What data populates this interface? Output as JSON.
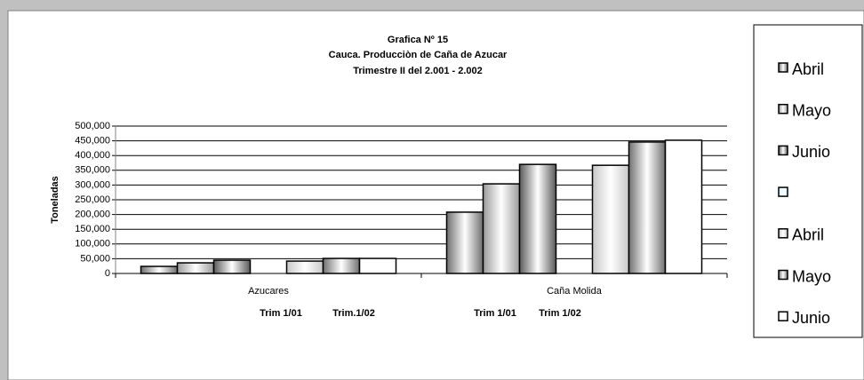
{
  "chart_data": {
    "type": "bar",
    "title": [
      "Grafica Nº 15",
      "Cauca. Producciòn de Caña de Azucar",
      "Trimestre II del 2.001 - 2.002"
    ],
    "ylabel": "Toneladas",
    "categories": [
      "Azucares",
      "Caña Molida"
    ],
    "sublabels": [
      [
        "Trim 1/01",
        "Trim.1/02"
      ],
      [
        "Trim 1/01",
        "Trim 1/02"
      ]
    ],
    "ylim": [
      0,
      500000
    ],
    "yticks": [
      0,
      {
        "value": 50000,
        "label": "50,000"
      },
      {
        "value": 100000,
        "label": "100,000"
      },
      {
        "value": 150000,
        "label": "150,000"
      },
      {
        "value": 200000,
        "label": "200,000"
      },
      {
        "value": 250000,
        "label": "250,000"
      },
      {
        "value": 300000,
        "label": "300,000"
      },
      {
        "value": 350000,
        "label": "350,000"
      },
      {
        "value": 400000,
        "label": "400,000"
      },
      {
        "value": 450000,
        "label": "450,000"
      },
      {
        "value": 500000,
        "label": "500,000"
      }
    ],
    "grid": true,
    "legend": "right",
    "series": [
      {
        "name": "Abril",
        "color": "#6e6e6e",
        "values": [
          24000,
          208000
        ]
      },
      {
        "name": "Mayo",
        "color": "#9a9a9a",
        "values": [
          36000,
          304000
        ]
      },
      {
        "name": "Junio",
        "color": "#5a5a5a",
        "values": [
          45000,
          370000
        ]
      },
      {
        "name": null,
        "color": "#ccffff",
        "values": [
          null,
          null
        ]
      },
      {
        "name": "Abril",
        "color": "#c8c8c8",
        "values": [
          42000,
          367000
        ]
      },
      {
        "name": "Mayo",
        "color": "#707070",
        "values": [
          51000,
          446000
        ]
      },
      {
        "name": "Junio",
        "color": "#ffffff",
        "values": [
          51000,
          452000
        ]
      }
    ]
  }
}
